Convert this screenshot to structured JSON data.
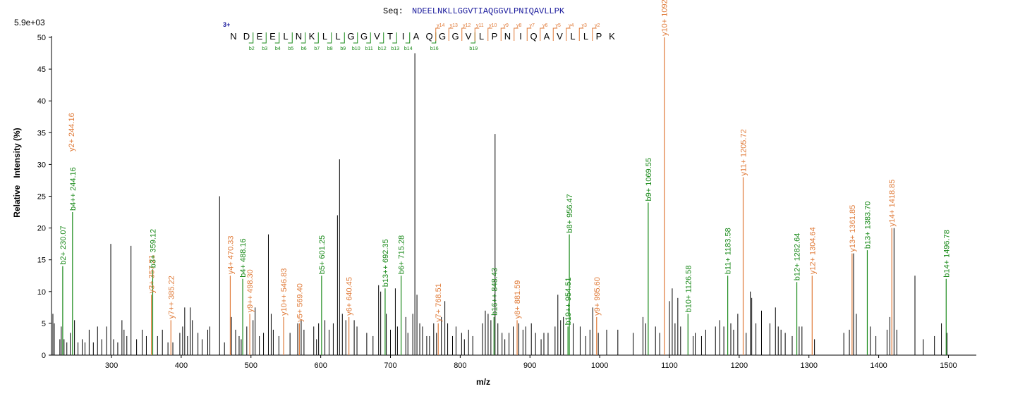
{
  "sequence": {
    "label": "Seq:",
    "value": "NDEELNKLLGGVTIAQGGVLPNIQAVLLPK",
    "charge": "3+",
    "residues": [
      "N",
      "D",
      "E",
      "E",
      "L",
      "N",
      "K",
      "L",
      "L",
      "G",
      "G",
      "V",
      "T",
      "I",
      "A",
      "Q",
      "G",
      "G",
      "V",
      "L",
      "P",
      "N",
      "I",
      "Q",
      "A",
      "V",
      "L",
      "L",
      "P",
      "K"
    ],
    "b_markers": [
      {
        "after": 2,
        "label": "b2"
      },
      {
        "after": 3,
        "label": "b3"
      },
      {
        "after": 4,
        "label": "b4"
      },
      {
        "after": 5,
        "label": "b5"
      },
      {
        "after": 6,
        "label": "b6"
      },
      {
        "after": 7,
        "label": "b7"
      },
      {
        "after": 8,
        "label": "b8"
      },
      {
        "after": 9,
        "label": "b9"
      },
      {
        "after": 10,
        "label": "b10"
      },
      {
        "after": 11,
        "label": "b11"
      },
      {
        "after": 12,
        "label": "b12"
      },
      {
        "after": 13,
        "label": "b13"
      },
      {
        "after": 14,
        "label": "b14"
      },
      {
        "after": 16,
        "label": "b16"
      },
      {
        "after": 19,
        "label": "b19"
      }
    ],
    "y_markers": [
      {
        "after": 16,
        "label": "y14"
      },
      {
        "after": 17,
        "label": "y13"
      },
      {
        "after": 18,
        "label": "y12"
      },
      {
        "after": 19,
        "label": "y11"
      },
      {
        "after": 20,
        "label": "y10"
      },
      {
        "after": 21,
        "label": "y9"
      },
      {
        "after": 22,
        "label": "y8"
      },
      {
        "after": 23,
        "label": "y7"
      },
      {
        "after": 24,
        "label": "y6"
      },
      {
        "after": 25,
        "label": "y5"
      },
      {
        "after": 26,
        "label": "y4"
      },
      {
        "after": 27,
        "label": "y3"
      },
      {
        "after": 28,
        "label": "y2"
      }
    ]
  },
  "chart_data": {
    "type": "bar",
    "subtype": "mass-spectrum",
    "max_intensity_label": "5.9e+03",
    "xlabel": "m/z",
    "ylabel": "Relative   Intensity (%)",
    "xlim": [
      214,
      1540
    ],
    "ylim": [
      0,
      50
    ],
    "xticks": [
      300,
      400,
      500,
      600,
      700,
      800,
      900,
      1000,
      1100,
      1200,
      1300,
      1400,
      1500
    ],
    "yticks": [
      0,
      5,
      10,
      15,
      20,
      25,
      30,
      35,
      40,
      45,
      50
    ],
    "colors": {
      "b_ion": "#1a8a1a",
      "y_ion": "#e07b39",
      "peak": "#000000",
      "axis": "#000000"
    },
    "annotated_peaks": [
      {
        "mz": 230.07,
        "intensity": 14.0,
        "ion": "b",
        "label": "b2+ 230.07"
      },
      {
        "mz": 244.16,
        "intensity": 22.5,
        "ion": "b",
        "label": "b4++ 244.16"
      },
      {
        "mz": 244.16,
        "intensity": 22.5,
        "ion": "y",
        "label": "y2+ 244.16",
        "label_only": true
      },
      {
        "mz": 357.21,
        "intensity": 9.5,
        "ion": "y",
        "label": "y3+ 357.21"
      },
      {
        "mz": 359.12,
        "intensity": 13.5,
        "ion": "b",
        "label": "b3+ 359.12"
      },
      {
        "mz": 385.22,
        "intensity": 5.5,
        "ion": "y",
        "label": "y7++ 385.22"
      },
      {
        "mz": 470.33,
        "intensity": 12.5,
        "ion": "y",
        "label": "y4+ 470.33"
      },
      {
        "mz": 488.16,
        "intensity": 12.0,
        "ion": "b",
        "label": "b4+ 488.16"
      },
      {
        "mz": 498.3,
        "intensity": 6.5,
        "ion": "y",
        "label": "y9++ 498.30"
      },
      {
        "mz": 546.83,
        "intensity": 6.0,
        "ion": "y",
        "label": "y10++ 546.83"
      },
      {
        "mz": 569.4,
        "intensity": 5.0,
        "ion": "y",
        "label": "y5+ 569.40"
      },
      {
        "mz": 601.25,
        "intensity": 12.5,
        "ion": "b",
        "label": "b5+ 601.25"
      },
      {
        "mz": 640.45,
        "intensity": 6.0,
        "ion": "y",
        "label": "y6+ 640.45"
      },
      {
        "mz": 692.35,
        "intensity": 10.5,
        "ion": "b",
        "label": "b13++ 692.35"
      },
      {
        "mz": 715.28,
        "intensity": 12.5,
        "ion": "b",
        "label": "b6+ 715.28"
      },
      {
        "mz": 768.51,
        "intensity": 5.0,
        "ion": "y",
        "label": "y7+ 768.51"
      },
      {
        "mz": 848.43,
        "intensity": 6.0,
        "ion": "b",
        "label": "b16++ 848.43"
      },
      {
        "mz": 881.59,
        "intensity": 5.5,
        "ion": "y",
        "label": "y8+ 881.59"
      },
      {
        "mz": 954.51,
        "intensity": 4.5,
        "ion": "b",
        "label": "b19++ 954.51"
      },
      {
        "mz": 956.47,
        "intensity": 19.0,
        "ion": "b",
        "label": "b8+ 956.47"
      },
      {
        "mz": 995.6,
        "intensity": 6.0,
        "ion": "y",
        "label": "y9+ 995.60"
      },
      {
        "mz": 1069.55,
        "intensity": 24.0,
        "ion": "b",
        "label": "b9+ 1069.55"
      },
      {
        "mz": 1092.66,
        "intensity": 50.0,
        "ion": "y",
        "label": "y10+ 1092.66"
      },
      {
        "mz": 1126.58,
        "intensity": 6.5,
        "ion": "b",
        "label": "b10+ 1126.58"
      },
      {
        "mz": 1183.58,
        "intensity": 12.5,
        "ion": "b",
        "label": "b11+ 1183.58"
      },
      {
        "mz": 1205.72,
        "intensity": 28.0,
        "ion": "y",
        "label": "y11+ 1205.72"
      },
      {
        "mz": 1282.64,
        "intensity": 11.5,
        "ion": "b",
        "label": "b12+ 1282.64"
      },
      {
        "mz": 1304.64,
        "intensity": 12.5,
        "ion": "y",
        "label": "y12+ 1304.64"
      },
      {
        "mz": 1361.85,
        "intensity": 16.0,
        "ion": "y",
        "label": "y13+ 1361.85"
      },
      {
        "mz": 1383.7,
        "intensity": 16.5,
        "ion": "b",
        "label": "b13+ 1383.70"
      },
      {
        "mz": 1418.85,
        "intensity": 20.0,
        "ion": "y",
        "label": "y14+ 1418.85"
      },
      {
        "mz": 1496.78,
        "intensity": 12.0,
        "ion": "b",
        "label": "b14+ 1496.78"
      }
    ],
    "peaks": [
      [
        216,
        6.5
      ],
      [
        218,
        5
      ],
      [
        226,
        2.5
      ],
      [
        228,
        4.5
      ],
      [
        232,
        2.5
      ],
      [
        236,
        2
      ],
      [
        241,
        3.5
      ],
      [
        247,
        5.5
      ],
      [
        252,
        2
      ],
      [
        258,
        2.5
      ],
      [
        262,
        2
      ],
      [
        268,
        4
      ],
      [
        274,
        2
      ],
      [
        280,
        4.5
      ],
      [
        286,
        2.5
      ],
      [
        293,
        4.5
      ],
      [
        299,
        17.5
      ],
      [
        303,
        2.5
      ],
      [
        309,
        2
      ],
      [
        315,
        5.5
      ],
      [
        318,
        4
      ],
      [
        322,
        3
      ],
      [
        328,
        17.2
      ],
      [
        336,
        2.5
      ],
      [
        344,
        4
      ],
      [
        350,
        3
      ],
      [
        366,
        3
      ],
      [
        373,
        4
      ],
      [
        381,
        2
      ],
      [
        388,
        2
      ],
      [
        398,
        3.5
      ],
      [
        402,
        4.5
      ],
      [
        405,
        7.5
      ],
      [
        409,
        3
      ],
      [
        413,
        7.5
      ],
      [
        416,
        5.5
      ],
      [
        424,
        3.5
      ],
      [
        430,
        2.5
      ],
      [
        438,
        4
      ],
      [
        441,
        4.5
      ],
      [
        455,
        25
      ],
      [
        462,
        2
      ],
      [
        472,
        6
      ],
      [
        478,
        4
      ],
      [
        483,
        3
      ],
      [
        486,
        2.5
      ],
      [
        494,
        4.5
      ],
      [
        503,
        5.5
      ],
      [
        506,
        7.5
      ],
      [
        512,
        3
      ],
      [
        518,
        3.5
      ],
      [
        525,
        19
      ],
      [
        529,
        6.5
      ],
      [
        532,
        4
      ],
      [
        540,
        3
      ],
      [
        556,
        3.5
      ],
      [
        567,
        5
      ],
      [
        572,
        5.5
      ],
      [
        576,
        4
      ],
      [
        590,
        4.5
      ],
      [
        594,
        2.5
      ],
      [
        597,
        5
      ],
      [
        606,
        5.5
      ],
      [
        612,
        4
      ],
      [
        618,
        5
      ],
      [
        624,
        22
      ],
      [
        627,
        30.8
      ],
      [
        631,
        6.5
      ],
      [
        636,
        5.5
      ],
      [
        648,
        5.5
      ],
      [
        652,
        4.5
      ],
      [
        666,
        3.5
      ],
      [
        675,
        3
      ],
      [
        683,
        11
      ],
      [
        686,
        10
      ],
      [
        694,
        6.5
      ],
      [
        700,
        4
      ],
      [
        707,
        10.5
      ],
      [
        710,
        4.5
      ],
      [
        722,
        6
      ],
      [
        725,
        3.5
      ],
      [
        732,
        6.5
      ],
      [
        735,
        47.5
      ],
      [
        738,
        9.5
      ],
      [
        742,
        5
      ],
      [
        746,
        4.5
      ],
      [
        752,
        3
      ],
      [
        756,
        3
      ],
      [
        762,
        5
      ],
      [
        766,
        3.5
      ],
      [
        773,
        6
      ],
      [
        778,
        8.5
      ],
      [
        782,
        5
      ],
      [
        789,
        3
      ],
      [
        794,
        4.5
      ],
      [
        802,
        3.5
      ],
      [
        806,
        2.5
      ],
      [
        812,
        4
      ],
      [
        818,
        3
      ],
      [
        832,
        5
      ],
      [
        836,
        7
      ],
      [
        840,
        6.5
      ],
      [
        844,
        5.5
      ],
      [
        850,
        34.8
      ],
      [
        854,
        5
      ],
      [
        860,
        3.5
      ],
      [
        864,
        2.5
      ],
      [
        870,
        3.5
      ],
      [
        876,
        4.5
      ],
      [
        884,
        5
      ],
      [
        890,
        4
      ],
      [
        894,
        4.5
      ],
      [
        902,
        5
      ],
      [
        908,
        3.5
      ],
      [
        916,
        2.5
      ],
      [
        920,
        3.5
      ],
      [
        926,
        3.5
      ],
      [
        936,
        4.5
      ],
      [
        940,
        9.5
      ],
      [
        944,
        5.5
      ],
      [
        948,
        6
      ],
      [
        962,
        5
      ],
      [
        972,
        4.5
      ],
      [
        980,
        3
      ],
      [
        986,
        4
      ],
      [
        990,
        7.5
      ],
      [
        998,
        3.5
      ],
      [
        1010,
        4
      ],
      [
        1026,
        4
      ],
      [
        1048,
        3.5
      ],
      [
        1062,
        6
      ],
      [
        1066,
        5
      ],
      [
        1080,
        4.5
      ],
      [
        1086,
        3.5
      ],
      [
        1100,
        8.5
      ],
      [
        1104,
        10.5
      ],
      [
        1108,
        5
      ],
      [
        1112,
        9
      ],
      [
        1116,
        4.5
      ],
      [
        1134,
        3
      ],
      [
        1137,
        3.5
      ],
      [
        1146,
        3
      ],
      [
        1152,
        4
      ],
      [
        1166,
        4.5
      ],
      [
        1172,
        5.5
      ],
      [
        1178,
        4.5
      ],
      [
        1188,
        5
      ],
      [
        1192,
        4
      ],
      [
        1198,
        6.5
      ],
      [
        1210,
        3.5
      ],
      [
        1216,
        10
      ],
      [
        1218,
        9
      ],
      [
        1224,
        5
      ],
      [
        1232,
        7
      ],
      [
        1244,
        5
      ],
      [
        1252,
        7.5
      ],
      [
        1256,
        4.5
      ],
      [
        1260,
        4
      ],
      [
        1266,
        3.5
      ],
      [
        1276,
        3
      ],
      [
        1286,
        4.5
      ],
      [
        1290,
        4.5
      ],
      [
        1308,
        2.5
      ],
      [
        1350,
        3.5
      ],
      [
        1358,
        4
      ],
      [
        1364,
        16
      ],
      [
        1368,
        6.5
      ],
      [
        1388,
        4.5
      ],
      [
        1396,
        3
      ],
      [
        1412,
        4
      ],
      [
        1416,
        6
      ],
      [
        1422,
        20
      ],
      [
        1426,
        4
      ],
      [
        1452,
        12.5
      ],
      [
        1464,
        2.5
      ],
      [
        1480,
        3
      ],
      [
        1490,
        5
      ],
      [
        1498,
        3.5
      ]
    ]
  }
}
